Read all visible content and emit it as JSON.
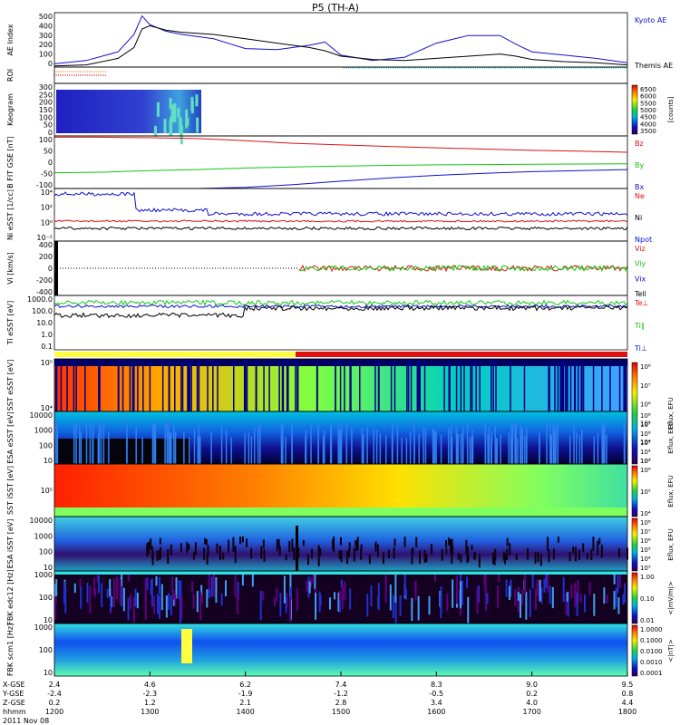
{
  "title": "P5 (TH-A)",
  "footer": {
    "rows": [
      {
        "label": "X-GSE",
        "values": [
          "2.4",
          "4.6",
          "6.2",
          "7.4",
          "8.3",
          "9.0",
          "9.5"
        ]
      },
      {
        "label": "Y-GSE",
        "values": [
          "-2.4",
          "-2.3",
          "-1.9",
          "-1.2",
          "-0.5",
          "0.2",
          "0.8"
        ]
      },
      {
        "label": "Z-GSE",
        "values": [
          "0.2",
          "1.2",
          "2.1",
          "2.8",
          "3.4",
          "4.0",
          "4.4"
        ]
      },
      {
        "label": "hhmm",
        "values": [
          "1200",
          "1300",
          "1400",
          "1500",
          "1600",
          "1700",
          "1800"
        ]
      }
    ],
    "date": "2011 Nov 08"
  },
  "colors": {
    "blue": "#1010d0",
    "red": "#dd1010",
    "green": "#10c810",
    "black": "#000000"
  },
  "chart_data": [
    {
      "type": "line",
      "id": "ae",
      "ylabel": "AE Index",
      "ylim": [
        0,
        500
      ],
      "yticks": [
        "500",
        "400",
        "300",
        "200",
        "100",
        "0"
      ],
      "legend": [
        "Kyoto AE",
        "Themis AE"
      ],
      "x": [
        1200,
        1220,
        1240,
        1250,
        1255,
        1300,
        1310,
        1320,
        1340,
        1400,
        1420,
        1440,
        1450,
        1500,
        1520,
        1540,
        1600,
        1620,
        1640,
        1650,
        1700,
        1720,
        1740,
        1800
      ],
      "series": [
        {
          "name": "Kyoto AE",
          "color": "blue",
          "values": [
            30,
            60,
            140,
            300,
            470,
            390,
            330,
            300,
            260,
            170,
            160,
            200,
            230,
            110,
            60,
            90,
            220,
            290,
            290,
            210,
            140,
            110,
            80,
            40
          ]
        },
        {
          "name": "Themis AE",
          "color": "black",
          "values": [
            10,
            20,
            80,
            180,
            350,
            380,
            340,
            320,
            300,
            260,
            220,
            180,
            150,
            100,
            70,
            60,
            80,
            100,
            120,
            100,
            70,
            50,
            40,
            20
          ]
        }
      ]
    },
    {
      "type": "bar",
      "id": "roi",
      "ylabel": "ROI"
    },
    {
      "type": "heatmap",
      "id": "keogram",
      "ylabel": "Keogram",
      "yticks": [
        "300",
        "250",
        "200",
        "150",
        "100",
        "50",
        "0"
      ],
      "colorbar": {
        "ticks": [
          "6500",
          "6000",
          "5500",
          "5000",
          "4500",
          "4000",
          "3500"
        ],
        "label": "[counts]"
      }
    },
    {
      "type": "line",
      "id": "bfield",
      "ylabel": "B FIT GSE [nT]",
      "yticks": [
        "100",
        "50",
        "0",
        "-50",
        "-100"
      ],
      "ylim": [
        -100,
        100
      ],
      "legend": [
        "Bz",
        "By",
        "Bx"
      ],
      "x": [
        1200,
        1230,
        1300,
        1330,
        1400,
        1430,
        1500,
        1530,
        1600,
        1630,
        1700,
        1730,
        1800
      ],
      "series": [
        {
          "name": "Bz",
          "color": "red",
          "values": [
            95,
            95,
            93,
            90,
            82,
            72,
            66,
            60,
            55,
            50,
            45,
            42,
            38
          ]
        },
        {
          "name": "By",
          "color": "green",
          "values": [
            -40,
            -38,
            -32,
            -28,
            -22,
            -18,
            -15,
            -12,
            -10,
            -9,
            -8,
            -7,
            -6
          ]
        },
        {
          "name": "Bx",
          "color": "blue",
          "values": [
            -100,
            -100,
            -100,
            -100,
            -96,
            -85,
            -72,
            -60,
            -50,
            -42,
            -36,
            -32,
            -28
          ]
        }
      ]
    },
    {
      "type": "line",
      "id": "density",
      "ylabel": "Ni eSST [1/cc]",
      "yticks": [
        "10⁴",
        "10²",
        "10⁰",
        "10⁻²"
      ],
      "legend": [
        "Ne",
        "Ni",
        "Npot"
      ]
    },
    {
      "type": "line",
      "id": "velocity",
      "ylabel": "Vi [km/s]",
      "yticks": [
        "400",
        "200",
        "0",
        "-200",
        "-400"
      ],
      "legend": [
        "Viz",
        "Viy",
        "Vix",
        "Tell"
      ]
    },
    {
      "type": "line",
      "id": "temperature",
      "ylabel": "Ti eSST [eV]",
      "yticks": [
        "1000.0",
        "100.0",
        "10.0",
        "1.0",
        "0.1"
      ],
      "legend": [
        "Te⊥",
        "Ti∥",
        "Ti⊥"
      ]
    },
    {
      "type": "heatmap",
      "id": "sst-e",
      "ylabel": "SST eSST [eV]",
      "yticks": [
        "10⁵",
        "10⁴"
      ],
      "colorbar": {
        "ticks": [
          "10⁸",
          "10⁷",
          "10⁶",
          "10⁵",
          "10⁴",
          "10³"
        ],
        "label": "Eflux, EFU"
      }
    },
    {
      "type": "heatmap",
      "id": "esa-e",
      "ylabel": "ESA eSST [eV]",
      "yticks": [
        "10000",
        "1000",
        "100",
        "10"
      ],
      "colorbar": {
        "ticks": [
          "10⁸",
          "10⁷",
          "10⁶",
          "10⁵",
          "10⁴",
          "10³"
        ],
        "label": "Eflux, EFU"
      }
    },
    {
      "type": "heatmap",
      "id": "sst-i",
      "ylabel": "SST iSST [eV]",
      "yticks": [
        "10⁵"
      ],
      "colorbar": {
        "ticks": [
          "10⁶",
          "10⁵",
          "10⁴"
        ],
        "label": "Eflux, EFU"
      }
    },
    {
      "type": "heatmap",
      "id": "esa-i",
      "ylabel": "ESA iSST [eV]",
      "yticks": [
        "10000",
        "1000",
        "100",
        "10"
      ],
      "colorbar": {
        "ticks": [
          "10⁸",
          "10⁷",
          "10⁶",
          "10⁵",
          "10⁴",
          "10³"
        ],
        "label": "Eflux, EFU"
      }
    },
    {
      "type": "heatmap",
      "id": "fbk-edc",
      "ylabel": "FBK edc12 [Hz]",
      "yticks": [
        "1000",
        "100",
        "10"
      ],
      "colorbar": {
        "ticks": [
          "1.00",
          "0.10",
          "0.01"
        ],
        "label": "<|mV/m|>"
      }
    },
    {
      "type": "heatmap",
      "id": "fbk-scm",
      "ylabel": "FBK scm1 [Hz]",
      "yticks": [
        "1000",
        "100",
        "10"
      ],
      "colorbar": {
        "ticks": [
          "1.0000",
          "0.1000",
          "0.0100",
          "0.0010",
          "0.0001"
        ],
        "label": "<|nT|>"
      }
    }
  ]
}
